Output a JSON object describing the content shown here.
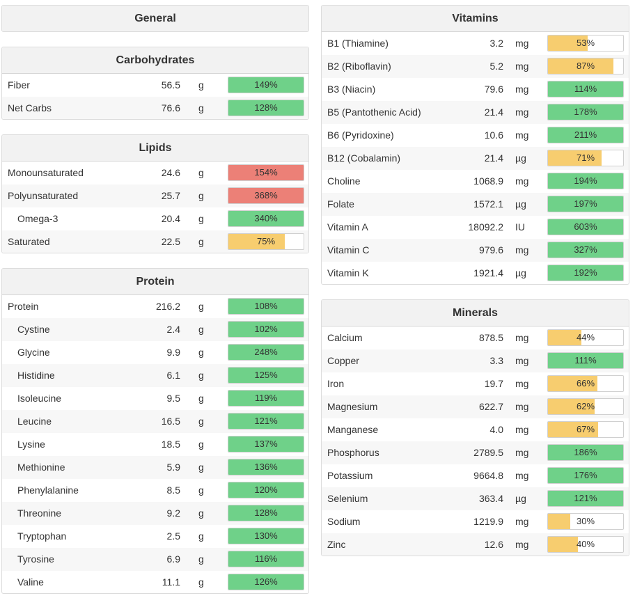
{
  "colors": {
    "green": "#6fd189",
    "yellow": "#f7cd6f",
    "red": "#ec8077"
  },
  "general": {
    "title": "General"
  },
  "carbohydrates": {
    "title": "Carbohydrates",
    "rows": [
      {
        "name": "Fiber",
        "amount": "56.5",
        "unit": "g",
        "pct": "149%",
        "fill": 1,
        "color": "green"
      },
      {
        "name": "Net Carbs",
        "amount": "76.6",
        "unit": "g",
        "pct": "128%",
        "fill": 1,
        "color": "green"
      }
    ]
  },
  "lipids": {
    "title": "Lipids",
    "rows": [
      {
        "name": "Monounsaturated",
        "amount": "24.6",
        "unit": "g",
        "pct": "154%",
        "fill": 1,
        "color": "red"
      },
      {
        "name": "Polyunsaturated",
        "amount": "25.7",
        "unit": "g",
        "pct": "368%",
        "fill": 1,
        "color": "red"
      },
      {
        "name": "Omega-3",
        "amount": "20.4",
        "unit": "g",
        "pct": "340%",
        "fill": 1,
        "color": "green",
        "indent": true
      },
      {
        "name": "Saturated",
        "amount": "22.5",
        "unit": "g",
        "pct": "75%",
        "fill": 0.75,
        "color": "yellow"
      }
    ]
  },
  "protein": {
    "title": "Protein",
    "rows": [
      {
        "name": "Protein",
        "amount": "216.2",
        "unit": "g",
        "pct": "108%",
        "fill": 1,
        "color": "green"
      },
      {
        "name": "Cystine",
        "amount": "2.4",
        "unit": "g",
        "pct": "102%",
        "fill": 1,
        "color": "green",
        "indent": true
      },
      {
        "name": "Glycine",
        "amount": "9.9",
        "unit": "g",
        "pct": "248%",
        "fill": 1,
        "color": "green",
        "indent": true
      },
      {
        "name": "Histidine",
        "amount": "6.1",
        "unit": "g",
        "pct": "125%",
        "fill": 1,
        "color": "green",
        "indent": true
      },
      {
        "name": "Isoleucine",
        "amount": "9.5",
        "unit": "g",
        "pct": "119%",
        "fill": 1,
        "color": "green",
        "indent": true
      },
      {
        "name": "Leucine",
        "amount": "16.5",
        "unit": "g",
        "pct": "121%",
        "fill": 1,
        "color": "green",
        "indent": true
      },
      {
        "name": "Lysine",
        "amount": "18.5",
        "unit": "g",
        "pct": "137%",
        "fill": 1,
        "color": "green",
        "indent": true
      },
      {
        "name": "Methionine",
        "amount": "5.9",
        "unit": "g",
        "pct": "136%",
        "fill": 1,
        "color": "green",
        "indent": true
      },
      {
        "name": "Phenylalanine",
        "amount": "8.5",
        "unit": "g",
        "pct": "120%",
        "fill": 1,
        "color": "green",
        "indent": true
      },
      {
        "name": "Threonine",
        "amount": "9.2",
        "unit": "g",
        "pct": "128%",
        "fill": 1,
        "color": "green",
        "indent": true
      },
      {
        "name": "Tryptophan",
        "amount": "2.5",
        "unit": "g",
        "pct": "130%",
        "fill": 1,
        "color": "green",
        "indent": true
      },
      {
        "name": "Tyrosine",
        "amount": "6.9",
        "unit": "g",
        "pct": "116%",
        "fill": 1,
        "color": "green",
        "indent": true
      },
      {
        "name": "Valine",
        "amount": "11.1",
        "unit": "g",
        "pct": "126%",
        "fill": 1,
        "color": "green",
        "indent": true
      }
    ]
  },
  "vitamins": {
    "title": "Vitamins",
    "rows": [
      {
        "name": "B1 (Thiamine)",
        "amount": "3.2",
        "unit": "mg",
        "pct": "53%",
        "fill": 0.53,
        "color": "yellow"
      },
      {
        "name": "B2 (Riboflavin)",
        "amount": "5.2",
        "unit": "mg",
        "pct": "87%",
        "fill": 0.87,
        "color": "yellow"
      },
      {
        "name": "B3 (Niacin)",
        "amount": "79.6",
        "unit": "mg",
        "pct": "114%",
        "fill": 1,
        "color": "green"
      },
      {
        "name": "B5 (Pantothenic Acid)",
        "amount": "21.4",
        "unit": "mg",
        "pct": "178%",
        "fill": 1,
        "color": "green"
      },
      {
        "name": "B6 (Pyridoxine)",
        "amount": "10.6",
        "unit": "mg",
        "pct": "211%",
        "fill": 1,
        "color": "green"
      },
      {
        "name": "B12 (Cobalamin)",
        "amount": "21.4",
        "unit": "µg",
        "pct": "71%",
        "fill": 0.71,
        "color": "yellow"
      },
      {
        "name": "Choline",
        "amount": "1068.9",
        "unit": "mg",
        "pct": "194%",
        "fill": 1,
        "color": "green"
      },
      {
        "name": "Folate",
        "amount": "1572.1",
        "unit": "µg",
        "pct": "197%",
        "fill": 1,
        "color": "green"
      },
      {
        "name": "Vitamin A",
        "amount": "18092.2",
        "unit": "IU",
        "pct": "603%",
        "fill": 1,
        "color": "green"
      },
      {
        "name": "Vitamin C",
        "amount": "979.6",
        "unit": "mg",
        "pct": "327%",
        "fill": 1,
        "color": "green"
      },
      {
        "name": "Vitamin K",
        "amount": "1921.4",
        "unit": "µg",
        "pct": "192%",
        "fill": 1,
        "color": "green"
      }
    ]
  },
  "minerals": {
    "title": "Minerals",
    "rows": [
      {
        "name": "Calcium",
        "amount": "878.5",
        "unit": "mg",
        "pct": "44%",
        "fill": 0.44,
        "color": "yellow"
      },
      {
        "name": "Copper",
        "amount": "3.3",
        "unit": "mg",
        "pct": "111%",
        "fill": 1,
        "color": "green"
      },
      {
        "name": "Iron",
        "amount": "19.7",
        "unit": "mg",
        "pct": "66%",
        "fill": 0.66,
        "color": "yellow"
      },
      {
        "name": "Magnesium",
        "amount": "622.7",
        "unit": "mg",
        "pct": "62%",
        "fill": 0.62,
        "color": "yellow"
      },
      {
        "name": "Manganese",
        "amount": "4.0",
        "unit": "mg",
        "pct": "67%",
        "fill": 0.67,
        "color": "yellow"
      },
      {
        "name": "Phosphorus",
        "amount": "2789.5",
        "unit": "mg",
        "pct": "186%",
        "fill": 1,
        "color": "green"
      },
      {
        "name": "Potassium",
        "amount": "9664.8",
        "unit": "mg",
        "pct": "176%",
        "fill": 1,
        "color": "green"
      },
      {
        "name": "Selenium",
        "amount": "363.4",
        "unit": "µg",
        "pct": "121%",
        "fill": 1,
        "color": "green"
      },
      {
        "name": "Sodium",
        "amount": "1219.9",
        "unit": "mg",
        "pct": "30%",
        "fill": 0.3,
        "color": "yellow"
      },
      {
        "name": "Zinc",
        "amount": "12.6",
        "unit": "mg",
        "pct": "40%",
        "fill": 0.4,
        "color": "yellow"
      }
    ]
  }
}
